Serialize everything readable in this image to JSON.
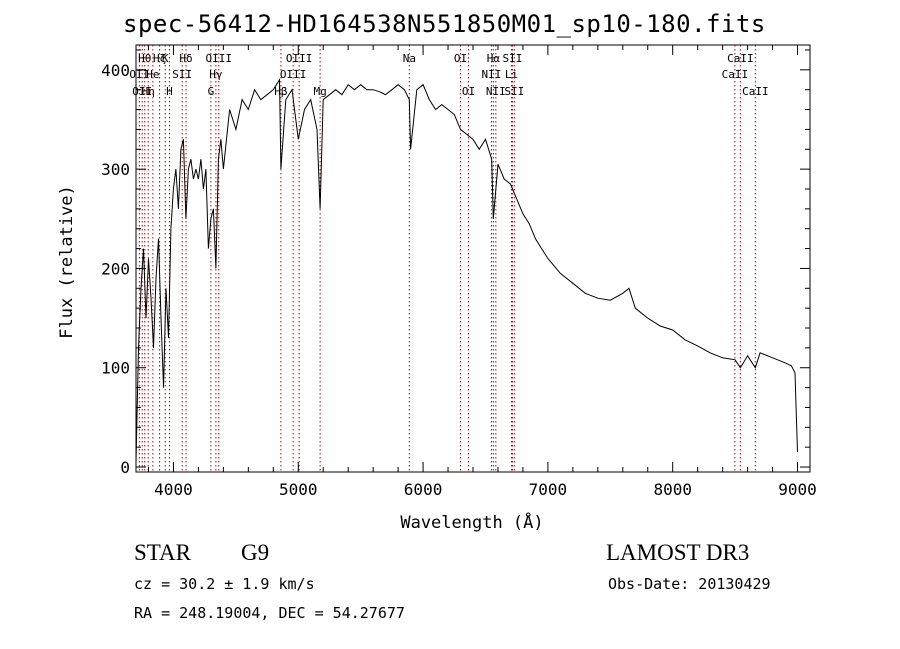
{
  "title": "spec-56412-HD164538N551850M01_sp10-180.fits",
  "info": {
    "object_type": "STAR",
    "spectral_class": "G9",
    "redshift": "cz = 30.2 ± 1.9 km/s",
    "coordinates": "RA = 248.19004, DEC =  54.27677",
    "survey": "LAMOST DR3",
    "obs_date": "Obs-Date: 20130429"
  },
  "chart_data": {
    "type": "line",
    "title": "spec-56412-HD164538N551850M01_sp10-180.fits",
    "xlabel": "Wavelength (Å)",
    "ylabel": "Flux (relative)",
    "xlim": [
      3700,
      9100
    ],
    "ylim": [
      -5,
      425
    ],
    "xticks": [
      4000,
      5000,
      6000,
      7000,
      8000,
      9000
    ],
    "yticks": [
      0,
      100,
      200,
      300,
      400
    ],
    "series": [
      {
        "name": "flux",
        "x": [
          3700,
          3720,
          3740,
          3760,
          3780,
          3800,
          3820,
          3840,
          3860,
          3880,
          3900,
          3920,
          3940,
          3960,
          3980,
          4000,
          4020,
          4040,
          4060,
          4080,
          4100,
          4120,
          4140,
          4160,
          4180,
          4200,
          4220,
          4240,
          4260,
          4280,
          4300,
          4320,
          4340,
          4360,
          4380,
          4400,
          4450,
          4500,
          4550,
          4600,
          4650,
          4700,
          4750,
          4800,
          4850,
          4861,
          4900,
          4950,
          5000,
          5050,
          5100,
          5150,
          5175,
          5200,
          5250,
          5300,
          5350,
          5400,
          5450,
          5500,
          5550,
          5600,
          5650,
          5700,
          5750,
          5800,
          5850,
          5890,
          5900,
          5950,
          6000,
          6050,
          6100,
          6150,
          6200,
          6250,
          6300,
          6350,
          6400,
          6450,
          6500,
          6550,
          6563,
          6600,
          6650,
          6700,
          6750,
          6800,
          6850,
          6900,
          6950,
          7000,
          7100,
          7200,
          7300,
          7400,
          7500,
          7600,
          7650,
          7700,
          7800,
          7900,
          8000,
          8100,
          8200,
          8300,
          8400,
          8500,
          8542,
          8600,
          8662,
          8700,
          8800,
          8900,
          8950,
          8980,
          9000
        ],
        "y": [
          5,
          120,
          180,
          220,
          150,
          210,
          170,
          120,
          190,
          230,
          150,
          80,
          180,
          130,
          240,
          280,
          300,
          260,
          320,
          330,
          250,
          300,
          310,
          290,
          300,
          290,
          310,
          280,
          300,
          220,
          250,
          260,
          200,
          310,
          330,
          300,
          360,
          340,
          370,
          360,
          380,
          370,
          375,
          380,
          390,
          300,
          370,
          380,
          330,
          360,
          370,
          340,
          260,
          370,
          375,
          380,
          375,
          385,
          380,
          385,
          380,
          380,
          378,
          375,
          380,
          385,
          380,
          370,
          320,
          380,
          385,
          370,
          360,
          365,
          360,
          355,
          340,
          335,
          330,
          320,
          330,
          310,
          250,
          305,
          290,
          285,
          270,
          255,
          245,
          230,
          220,
          210,
          195,
          185,
          175,
          170,
          168,
          175,
          180,
          160,
          150,
          142,
          138,
          128,
          122,
          115,
          110,
          108,
          100,
          112,
          100,
          115,
          110,
          105,
          102,
          95,
          15
        ],
        "style": "black line"
      }
    ],
    "line_marks": [
      {
        "x": 3727,
        "label": "OII",
        "row": 1
      },
      {
        "x": 3750,
        "label": "OII",
        "row": 2
      },
      {
        "x": 3770,
        "label": "Hθ",
        "row": 0
      },
      {
        "x": 3798,
        "label": "Hη",
        "row": 2
      },
      {
        "x": 3835,
        "label": "He",
        "row": 1
      },
      {
        "x": 3889,
        "label": "Hζ",
        "row": 0
      },
      {
        "x": 3934,
        "label": "K",
        "row": 0
      },
      {
        "x": 3968,
        "label": "H",
        "row": 2
      },
      {
        "x": 4070,
        "label": "SII",
        "row": 1
      },
      {
        "x": 4101,
        "label": "Hδ",
        "row": 0
      },
      {
        "x": 4300,
        "label": "G",
        "row": 2
      },
      {
        "x": 4340,
        "label": "Hγ",
        "row": 1
      },
      {
        "x": 4363,
        "label": "OIII",
        "row": 0
      },
      {
        "x": 4861,
        "label": "Hβ",
        "row": 2
      },
      {
        "x": 4959,
        "label": "OIII",
        "row": 1
      },
      {
        "x": 5007,
        "label": "OIII",
        "row": 0
      },
      {
        "x": 5175,
        "label": "Mg",
        "row": 2
      },
      {
        "x": 5890,
        "label": "Na",
        "row": 0
      },
      {
        "x": 6300,
        "label": "OI",
        "row": 0
      },
      {
        "x": 6364,
        "label": "OI",
        "row": 2
      },
      {
        "x": 6548,
        "label": "NII",
        "row": 1
      },
      {
        "x": 6563,
        "label": "Hα",
        "row": 0
      },
      {
        "x": 6583,
        "label": "NII",
        "row": 2
      },
      {
        "x": 6708,
        "label": "Li",
        "row": 1
      },
      {
        "x": 6716,
        "label": "SII",
        "row": 0
      },
      {
        "x": 6731,
        "label": "SII",
        "row": 2
      },
      {
        "x": 8498,
        "label": "CaII",
        "row": 1
      },
      {
        "x": 8542,
        "label": "CaII",
        "row": 0
      },
      {
        "x": 8662,
        "label": "CaII",
        "row": 2
      }
    ]
  }
}
